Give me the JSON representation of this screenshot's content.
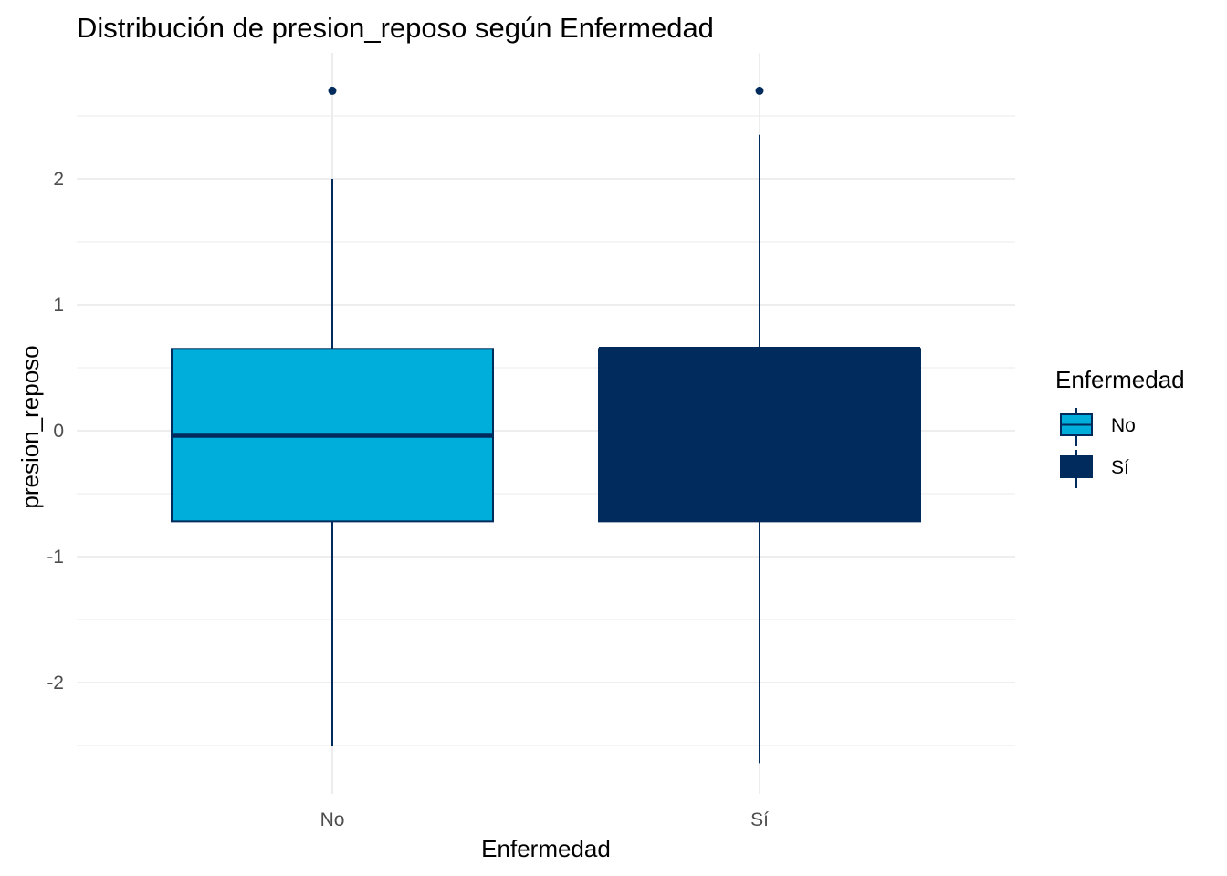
{
  "chart_data": {
    "type": "boxplot",
    "title": "Distribución de presion_reposo según Enfermedad",
    "xlabel": "Enfermedad",
    "ylabel": "presion_reposo",
    "ylim": [
      -2.85,
      2.85
    ],
    "yticks": [
      -2,
      -1,
      0,
      1,
      2
    ],
    "grid": true,
    "legend": {
      "title": "Enfermedad",
      "position": "right",
      "entries": [
        {
          "label": "No",
          "fill": "#00AEDB"
        },
        {
          "label": "Sí",
          "fill": "#002B5C"
        }
      ]
    },
    "categories": [
      "No",
      "Sí"
    ],
    "boxes": [
      {
        "category": "No",
        "min": -2.5,
        "q1": -0.72,
        "median": -0.04,
        "q3": 0.65,
        "max": 2.0,
        "outliers": [
          2.7
        ],
        "fill": "#00AEDB"
      },
      {
        "category": "Sí",
        "min": -2.64,
        "q1": -0.72,
        "median": 0.65,
        "q3": 0.65,
        "max": 2.35,
        "outliers": [
          2.7
        ],
        "fill": "#002B5C"
      }
    ],
    "line_color": "#002B5C"
  }
}
